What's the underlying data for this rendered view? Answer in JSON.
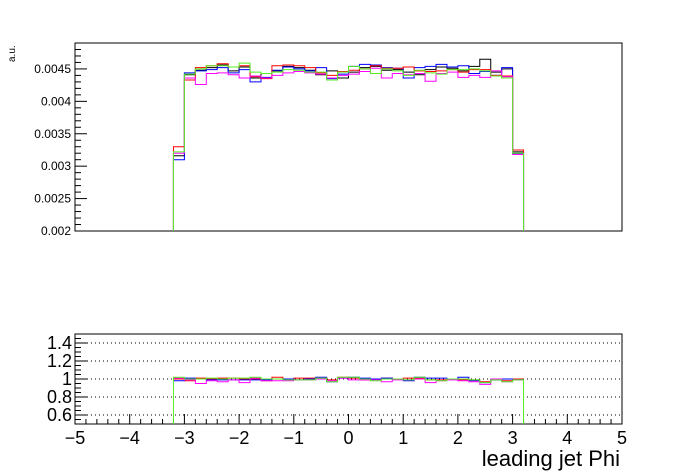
{
  "chart_data": [
    {
      "type": "line",
      "panel": "main",
      "ylabel": "a.u.",
      "xlim": [
        -5,
        5
      ],
      "ylim": [
        0.002,
        0.0049
      ],
      "y_ticks": [
        0.002,
        0.0025,
        0.003,
        0.0035,
        0.004,
        0.0045
      ],
      "y_tick_labels": [
        "0.002",
        "0.0025",
        "0.003",
        "0.0035",
        "0.004",
        "0.0045"
      ],
      "bin_edges": [
        -3.2,
        -3.0,
        -2.8,
        -2.6,
        -2.4,
        -2.2,
        -2.0,
        -1.8,
        -1.6,
        -1.4,
        -1.2,
        -1.0,
        -0.8,
        -0.6,
        -0.4,
        -0.2,
        0.0,
        0.2,
        0.4,
        0.6,
        0.8,
        1.0,
        1.2,
        1.4,
        1.6,
        1.8,
        2.0,
        2.2,
        2.4,
        2.6,
        2.8,
        3.0,
        3.2
      ],
      "series": [
        {
          "color": "#000000",
          "values": [
            0.00316,
            0.00441,
            0.00448,
            0.00452,
            0.00456,
            0.00447,
            0.00453,
            0.00436,
            0.00443,
            0.00447,
            0.00454,
            0.00452,
            0.00448,
            0.00441,
            0.00447,
            0.00436,
            0.00445,
            0.00452,
            0.00454,
            0.00448,
            0.00449,
            0.00445,
            0.00441,
            0.00449,
            0.00453,
            0.00451,
            0.00447,
            0.00454,
            0.00465,
            0.00445,
            0.0045,
            0.00322
          ]
        },
        {
          "color": "#0000ff",
          "values": [
            0.0031,
            0.00444,
            0.00447,
            0.00449,
            0.00452,
            0.00444,
            0.00449,
            0.0043,
            0.00437,
            0.00448,
            0.00453,
            0.0045,
            0.00447,
            0.00452,
            0.00435,
            0.00442,
            0.00454,
            0.00457,
            0.00456,
            0.00452,
            0.00451,
            0.00436,
            0.00452,
            0.00454,
            0.00457,
            0.00453,
            0.00455,
            0.00443,
            0.00446,
            0.0044,
            0.00452,
            0.00319
          ]
        },
        {
          "color": "#ff0000",
          "values": [
            0.0033,
            0.00433,
            0.00452,
            0.00455,
            0.00458,
            0.00453,
            0.00455,
            0.00438,
            0.00435,
            0.00455,
            0.00456,
            0.00455,
            0.00452,
            0.00444,
            0.0044,
            0.00446,
            0.00448,
            0.0045,
            0.00455,
            0.00451,
            0.00451,
            0.00453,
            0.00447,
            0.00446,
            0.00447,
            0.00449,
            0.00445,
            0.00449,
            0.00449,
            0.0044,
            0.00439,
            0.00325
          ]
        },
        {
          "color": "#ff00ff",
          "values": [
            0.0032,
            0.00436,
            0.00426,
            0.00443,
            0.00444,
            0.00441,
            0.00436,
            0.00439,
            0.00436,
            0.0044,
            0.00444,
            0.00446,
            0.00444,
            0.00442,
            0.00436,
            0.0044,
            0.00442,
            0.00446,
            0.00451,
            0.00436,
            0.00443,
            0.00441,
            0.00443,
            0.00431,
            0.00443,
            0.00445,
            0.00437,
            0.0044,
            0.00437,
            0.00447,
            0.00438,
            0.00318
          ]
        },
        {
          "color": "#55ee22",
          "values": [
            0.00322,
            0.00442,
            0.0045,
            0.00455,
            0.00455,
            0.00453,
            0.00459,
            0.00445,
            0.00443,
            0.00445,
            0.00449,
            0.00448,
            0.00445,
            0.00445,
            0.00433,
            0.00445,
            0.00454,
            0.0045,
            0.00443,
            0.0045,
            0.00447,
            0.0044,
            0.00448,
            0.00444,
            0.00442,
            0.00449,
            0.00449,
            0.0045,
            0.00447,
            0.00439,
            0.00436,
            0.0032
          ]
        }
      ]
    },
    {
      "type": "line",
      "panel": "ratio",
      "xlabel": "leading jet Phi",
      "xlim": [
        -5,
        5
      ],
      "ylim": [
        0.5,
        1.5
      ],
      "grid": "dotted horizontal",
      "x_ticks": [
        -5,
        -4,
        -3,
        -2,
        -1,
        0,
        1,
        2,
        3,
        4,
        5
      ],
      "x_tick_labels": [
        "−5",
        "−4",
        "−3",
        "−2",
        "−1",
        "0",
        "1",
        "2",
        "3",
        "4",
        "5"
      ],
      "y_ticks": [
        0.6,
        0.8,
        1.0,
        1.2,
        1.4
      ],
      "y_tick_labels": [
        "0.6",
        "0.8",
        "1",
        "1.2",
        "1.4"
      ],
      "bin_edges": [
        -3.2,
        -3.0,
        -2.8,
        -2.6,
        -2.4,
        -2.2,
        -2.0,
        -1.8,
        -1.6,
        -1.4,
        -1.2,
        -1.0,
        -0.8,
        -0.6,
        -0.4,
        -0.2,
        0.0,
        0.2,
        0.4,
        0.6,
        0.8,
        1.0,
        1.2,
        1.4,
        1.6,
        1.8,
        2.0,
        2.2,
        2.4,
        2.6,
        2.8,
        3.0,
        3.2
      ],
      "series": [
        {
          "color": "#ff0000",
          "values": [
            1.0,
            0.98,
            1.01,
            1.0,
            1.01,
            1.01,
            1.0,
            1.0,
            0.98,
            1.02,
            1.0,
            1.01,
            1.01,
            1.0,
            0.99,
            1.02,
            1.01,
            0.99,
            1.0,
            1.01,
            1.0,
            1.01,
            1.01,
            0.99,
            0.99,
            1.0,
            0.99,
            0.99,
            0.97,
            0.99,
            0.98,
            1.0
          ]
        },
        {
          "color": "#0000ff",
          "values": [
            0.98,
            1.01,
            1.0,
            0.99,
            0.99,
            0.99,
            0.99,
            0.99,
            0.99,
            1.0,
            1.0,
            0.99,
            1.0,
            1.02,
            0.97,
            1.01,
            1.02,
            1.01,
            1.0,
            1.01,
            1.0,
            0.98,
            1.02,
            1.01,
            1.01,
            1.0,
            1.02,
            0.98,
            0.96,
            0.99,
            1.0,
            0.99
          ]
        },
        {
          "color": "#ff00ff",
          "values": [
            1.01,
            0.99,
            0.95,
            0.98,
            0.97,
            0.99,
            0.96,
            1.01,
            0.98,
            0.98,
            0.98,
            0.99,
            0.99,
            1.0,
            0.98,
            1.01,
            0.99,
            0.99,
            0.99,
            0.97,
            0.99,
            0.99,
            1.0,
            0.96,
            0.98,
            0.99,
            0.98,
            0.97,
            0.94,
            1.0,
            0.97,
            0.99
          ]
        },
        {
          "color": "#55ee22",
          "values": [
            1.02,
            1.0,
            1.0,
            1.01,
            1.0,
            1.01,
            1.01,
            1.02,
            1.0,
            1.0,
            0.99,
            0.99,
            0.99,
            1.01,
            0.97,
            1.02,
            1.02,
            1.0,
            0.98,
            1.0,
            1.0,
            0.99,
            1.02,
            0.99,
            0.98,
            1.0,
            1.0,
            0.99,
            0.96,
            0.99,
            0.97,
            0.99
          ]
        }
      ]
    }
  ]
}
